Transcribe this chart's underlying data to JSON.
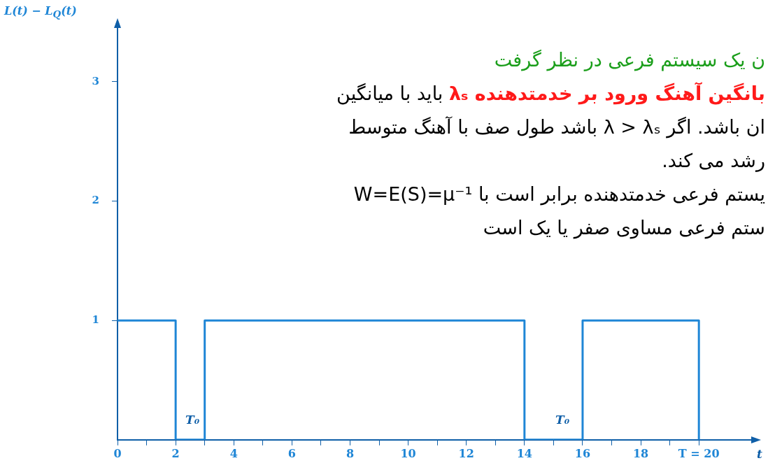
{
  "chart_data": {
    "type": "step",
    "ylabel": "L(t) − L$_{Q}$(t)",
    "xlabel": "t",
    "x": [
      0,
      2,
      3,
      14,
      16,
      20
    ],
    "values": [
      1,
      0,
      1,
      0,
      1,
      0
    ],
    "color": "#1f86d6",
    "xlim": [
      0,
      21.8
    ],
    "ylim": [
      0,
      3.45
    ],
    "xticks": [
      0,
      {
        "value": 1,
        "label": null
      },
      2,
      {
        "value": 3,
        "label": null
      },
      4,
      {
        "value": 5,
        "label": null
      },
      6,
      {
        "value": 7,
        "label": null
      },
      8,
      {
        "value": 9,
        "label": null
      },
      10,
      {
        "value": 11,
        "label": null
      },
      12,
      {
        "value": 13,
        "label": null
      },
      14,
      {
        "value": 15,
        "label": null
      },
      16,
      {
        "value": 17,
        "label": null
      },
      18,
      {
        "value": 19,
        "label": null
      },
      {
        "value": 20,
        "label": "T = 20"
      }
    ],
    "yticks": [
      1,
      2,
      3
    ],
    "grid": false,
    "legend": false,
    "marker": "none",
    "line_style": "solid",
    "annotations": [
      "T₀",
      "T₀",
      "ن یک سیستم فرعی در نظر گرفت",
      "بانگین آهنگ ورود بر خدمتدهنده λₛ",
      "باید با میانگین",
      "ان باشد. اگر λ > λₛ باشد طول صف با آهنگ متوسط",
      "رشد می کند.",
      "یستم فرعی خدمتدهنده برابر است با W=E(S)=μ⁻¹",
      "ستم فرعی مساوی صفر یا یک است"
    ]
  }
}
